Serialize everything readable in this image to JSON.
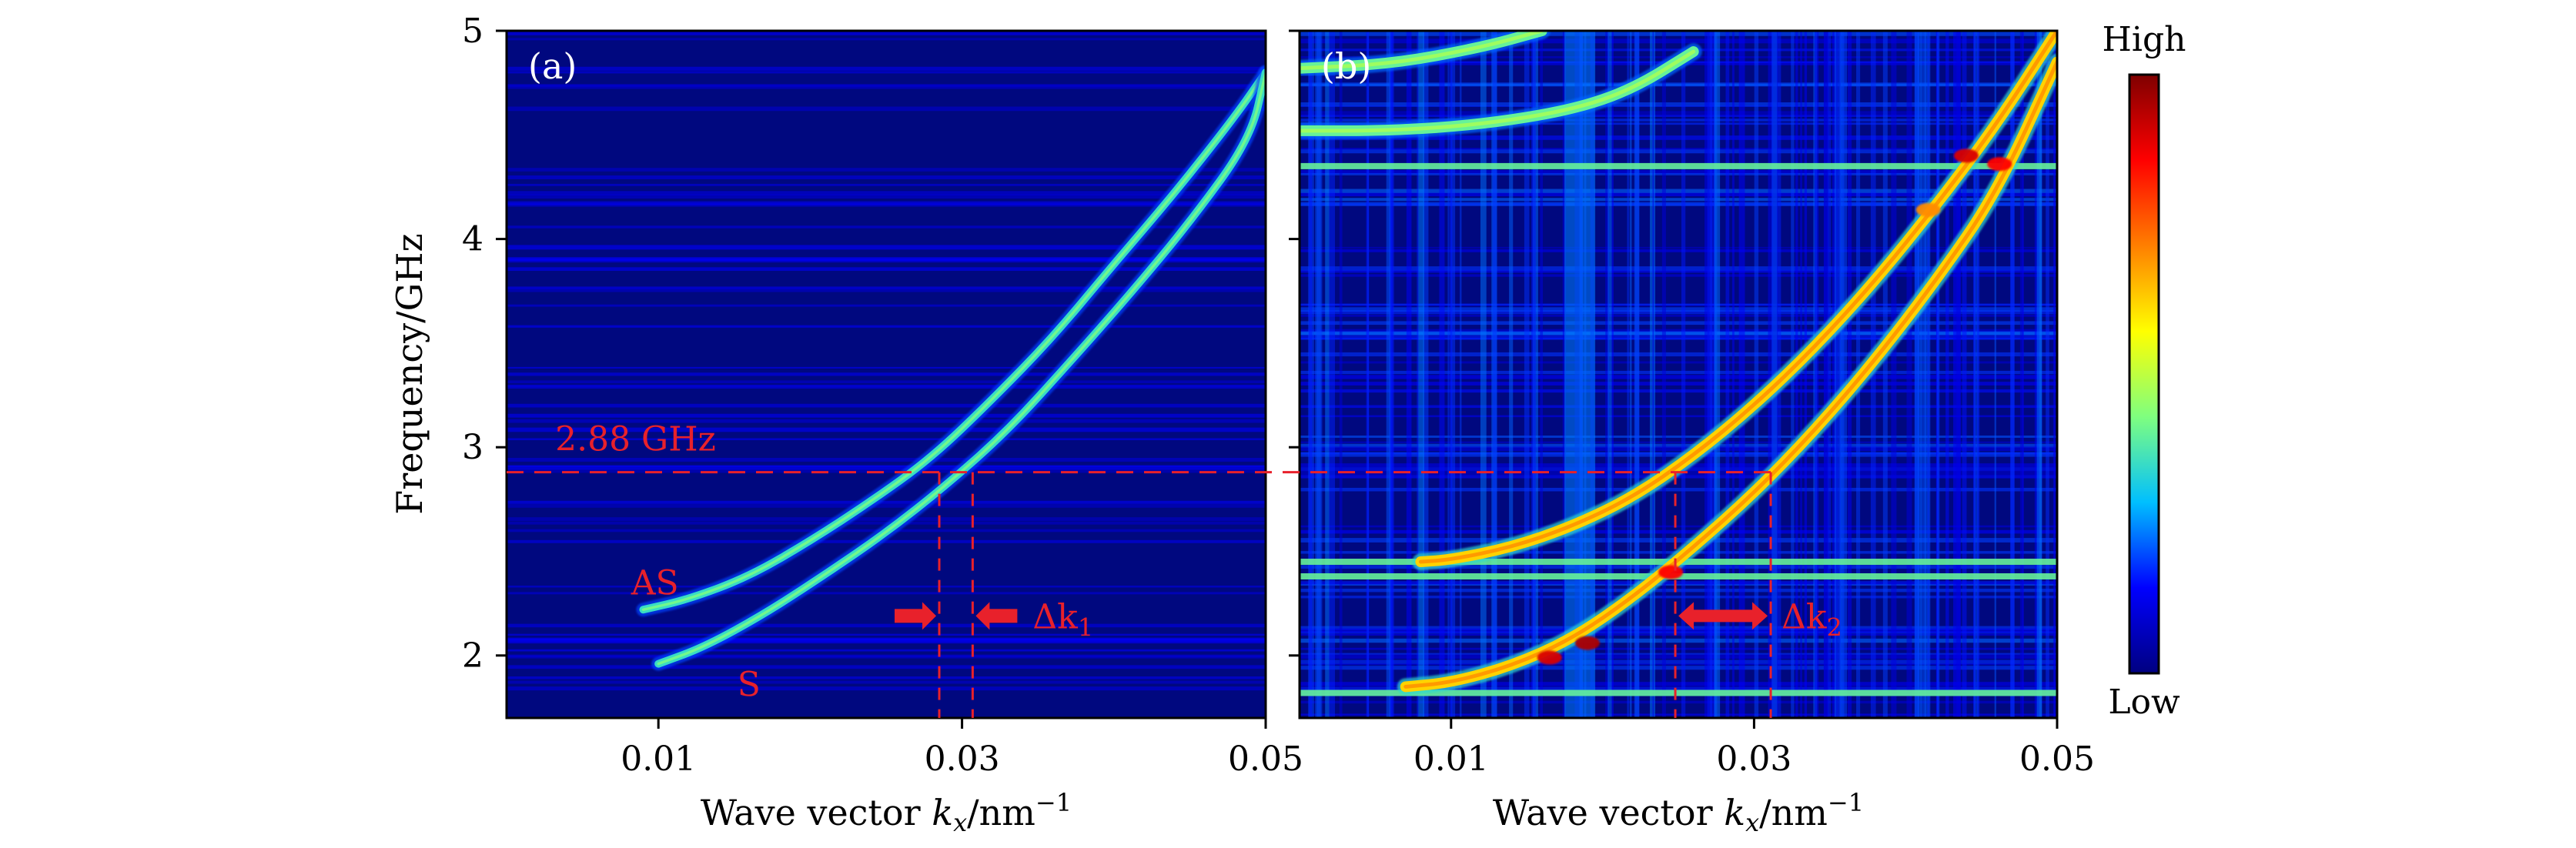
{
  "figure": {
    "colorbar": {
      "high_label": "High",
      "low_label": "Low"
    },
    "shared_ylabel": "Frequency/GHz",
    "ref_line": {
      "freq": 2.88,
      "label": "2.88 GHz"
    }
  },
  "colors": {
    "background": "#00087f",
    "annotation": "#e8212b",
    "colormap": [
      "#000080",
      "#0000ff",
      "#00bfff",
      "#7fff7f",
      "#ffff00",
      "#ff7f00",
      "#ff0000",
      "#7f0000"
    ]
  },
  "chart_data": [
    {
      "type": "heatmap",
      "panel_label": "(a)",
      "xlabel_text": "Wave vector",
      "xlabel_symbol": "k",
      "xlabel_sub": "x",
      "xlabel_unit": "/nm",
      "xlabel_exp": "−1",
      "xlim": [
        0.0,
        0.05
      ],
      "ylim": [
        1.7,
        5.0
      ],
      "xticks": [
        0.01,
        0.03,
        0.05
      ],
      "yticks": [
        2,
        3,
        4,
        5
      ],
      "series": [
        {
          "name": "AS",
          "x": [
            0.009,
            0.012,
            0.016,
            0.02,
            0.024,
            0.028,
            0.032,
            0.036,
            0.04,
            0.044,
            0.048,
            0.05
          ],
          "y": [
            2.22,
            2.27,
            2.38,
            2.55,
            2.74,
            2.95,
            3.23,
            3.53,
            3.88,
            4.22,
            4.59,
            4.8
          ],
          "intensity": 0.35
        },
        {
          "name": "S",
          "x": [
            0.01,
            0.013,
            0.017,
            0.021,
            0.025,
            0.029,
            0.033,
            0.037,
            0.041,
            0.045,
            0.049,
            0.05
          ],
          "y": [
            1.96,
            2.04,
            2.2,
            2.39,
            2.59,
            2.82,
            3.08,
            3.4,
            3.73,
            4.08,
            4.48,
            4.8
          ],
          "intensity": 0.35
        }
      ],
      "markers": {
        "k1": 0.0285,
        "k2": 0.0307,
        "label_symbol": "Δk",
        "label_sub": "1"
      }
    },
    {
      "type": "heatmap",
      "panel_label": "(b)",
      "xlabel_text": "Wave vector",
      "xlabel_symbol": "k",
      "xlabel_sub": "x",
      "xlabel_unit": "/nm",
      "xlabel_exp": "−1",
      "xlim": [
        0.0,
        0.05
      ],
      "ylim": [
        1.7,
        5.0
      ],
      "xticks": [
        0.01,
        0.03,
        0.05
      ],
      "yticks": [
        2,
        3,
        4,
        5
      ],
      "series": [
        {
          "name": "",
          "x": [
            0.008,
            0.01,
            0.014,
            0.018,
            0.022,
            0.026,
            0.03,
            0.034,
            0.038,
            0.042,
            0.046,
            0.05
          ],
          "y": [
            2.45,
            2.46,
            2.52,
            2.62,
            2.76,
            2.96,
            3.2,
            3.48,
            3.8,
            4.16,
            4.55,
            5.0
          ],
          "intensity": 0.62
        },
        {
          "name": "",
          "x": [
            0.007,
            0.01,
            0.014,
            0.018,
            0.022,
            0.026,
            0.03,
            0.034,
            0.038,
            0.042,
            0.046,
            0.05
          ],
          "y": [
            1.85,
            1.87,
            1.95,
            2.08,
            2.28,
            2.52,
            2.78,
            3.08,
            3.42,
            3.8,
            4.22,
            4.85
          ],
          "intensity": 0.62
        },
        {
          "name": "",
          "x": [
            0.0,
            0.006,
            0.012,
            0.018,
            0.022,
            0.026
          ],
          "y": [
            4.52,
            4.52,
            4.55,
            4.62,
            4.72,
            4.9
          ],
          "intensity": 0.4
        },
        {
          "name": "",
          "x": [
            0.0,
            0.006,
            0.012,
            0.016
          ],
          "y": [
            4.82,
            4.84,
            4.92,
            5.0
          ],
          "intensity": 0.4
        }
      ],
      "hot_spots": [
        {
          "x": 0.019,
          "y": 2.06,
          "intensity": 0.95
        },
        {
          "x": 0.0165,
          "y": 1.99,
          "intensity": 0.9
        },
        {
          "x": 0.0245,
          "y": 2.4,
          "intensity": 0.85
        },
        {
          "x": 0.044,
          "y": 4.4,
          "intensity": 0.9
        },
        {
          "x": 0.0462,
          "y": 4.36,
          "intensity": 0.85
        },
        {
          "x": 0.0415,
          "y": 4.14,
          "intensity": 0.7
        }
      ],
      "flat_bands": [
        1.82,
        2.38,
        2.45,
        4.35
      ],
      "markers": {
        "k1": 0.0248,
        "k2": 0.0311,
        "label_symbol": "Δk",
        "label_sub": "2"
      }
    }
  ]
}
